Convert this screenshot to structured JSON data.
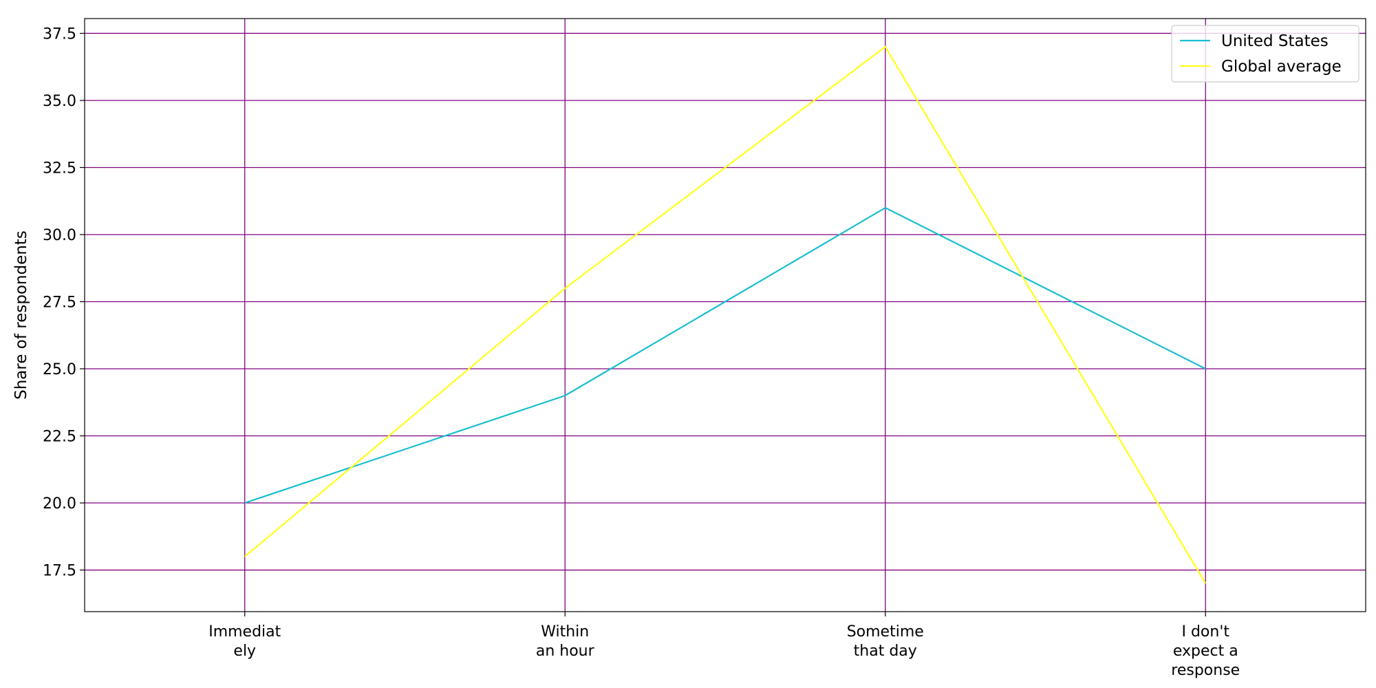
{
  "chart_data": {
    "type": "line",
    "title": "",
    "xlabel": "",
    "ylabel": "Share of respondents",
    "categories": [
      [
        "Immediat",
        "ely"
      ],
      [
        "Within",
        "an hour"
      ],
      [
        "Sometime",
        "that day"
      ],
      [
        "I don't",
        "expect a",
        "response"
      ]
    ],
    "series": [
      {
        "name": "United States",
        "values": [
          20,
          24,
          31,
          25
        ],
        "color": "#17becf"
      },
      {
        "name": "Global average",
        "values": [
          18,
          28,
          37,
          17
        ],
        "color": "#ffff1a"
      }
    ],
    "ylim": [
      15.95,
      38.05
    ],
    "yticks": [
      17.5,
      20.0,
      22.5,
      25.0,
      27.5,
      30.0,
      32.5,
      35.0,
      37.5
    ],
    "grid": true,
    "grid_color": "#800080",
    "legend_position": "top-right"
  }
}
